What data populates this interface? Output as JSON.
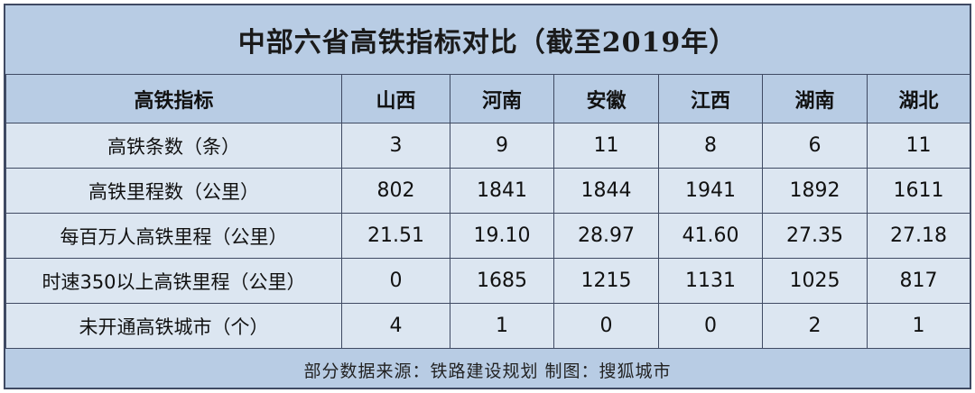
{
  "title": "中部六省高铁指标对比（截至2019年）",
  "footer": "部分数据来源：铁路建设规划    制图：搜狐城市",
  "chart_data": {
    "type": "table",
    "title": "中部六省高铁指标对比（截至2019年）",
    "columns": [
      "高铁指标",
      "山西",
      "河南",
      "安徽",
      "江西",
      "湖南",
      "湖北"
    ],
    "rows": [
      {
        "metric": "高铁条数（条）",
        "values": [
          "3",
          "9",
          "11",
          "8",
          "6",
          "11"
        ]
      },
      {
        "metric": "高铁里程数（公里）",
        "values": [
          "802",
          "1841",
          "1844",
          "1941",
          "1892",
          "1611"
        ]
      },
      {
        "metric": "每百万人高铁里程（公里）",
        "values": [
          "21.51",
          "19.10",
          "28.97",
          "41.60",
          "27.35",
          "27.18"
        ]
      },
      {
        "metric": "时速350以上高铁里程（公里）",
        "values": [
          "0",
          "1685",
          "1215",
          "1131",
          "1025",
          "817"
        ]
      },
      {
        "metric": "未开通高铁城市（个）",
        "values": [
          "4",
          "1",
          "0",
          "0",
          "2",
          "1"
        ]
      }
    ],
    "source": "部分数据来源：铁路建设规划    制图：搜狐城市"
  }
}
